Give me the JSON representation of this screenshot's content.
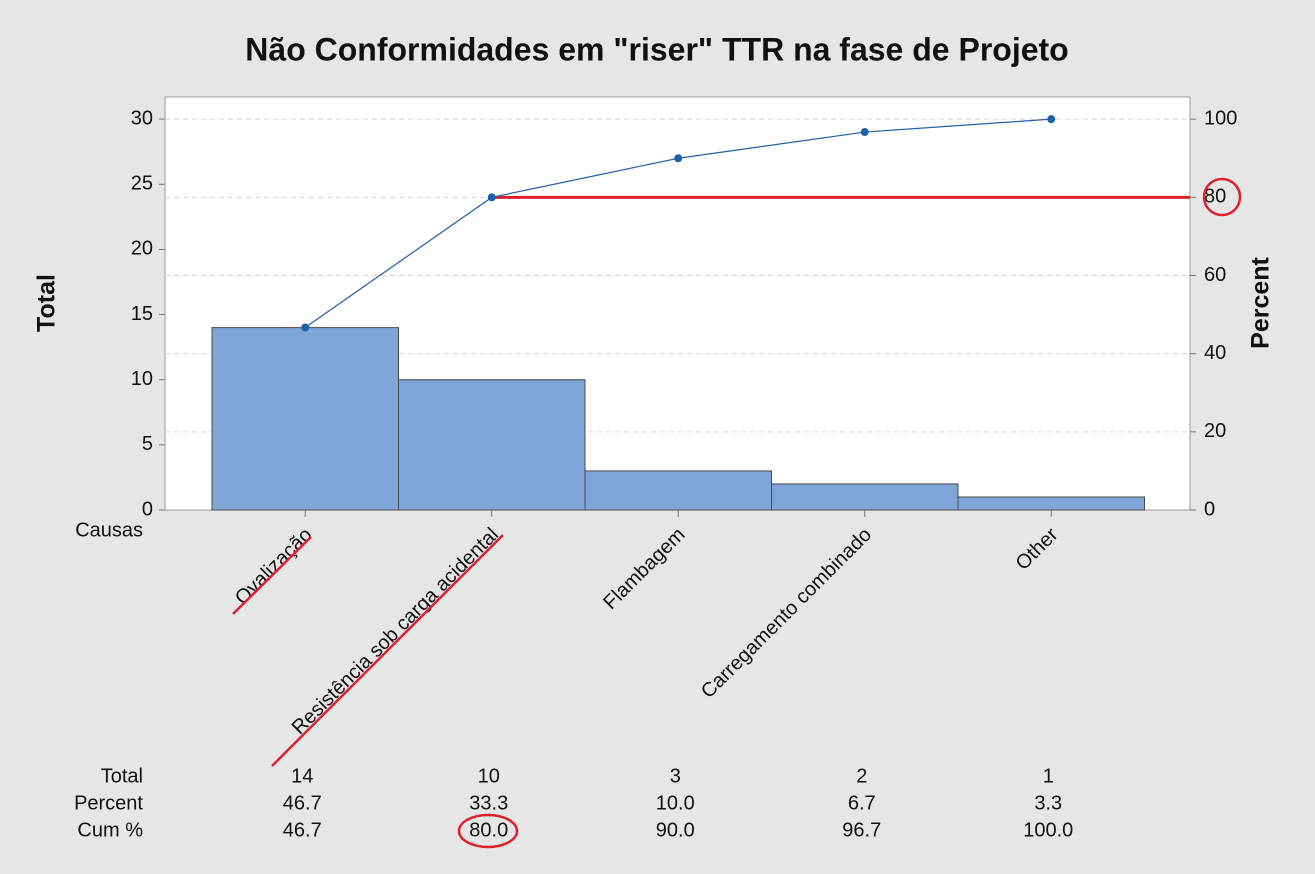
{
  "chart_data": {
    "type": "pareto",
    "title": "Não Conformidades em \"riser\" TTR na fase de Projeto",
    "ylabel": "Total",
    "y2label": "Percent",
    "xlabel": "Causas",
    "categories": [
      "Ovalização",
      "Resistência sob carga acidental",
      "Flambagem",
      "Carregamento combinado",
      "Other"
    ],
    "series": [
      {
        "name": "Total",
        "color": "#7ea6d8",
        "values": [
          14,
          10,
          3,
          2,
          1
        ]
      },
      {
        "name": "Cum %",
        "color": "#1f5fa8",
        "axis": "y2",
        "values": [
          46.7,
          80,
          90,
          96.7,
          100
        ],
        "value_labels": [
          "46.7",
          "80.0",
          "90.0",
          "96.7",
          "100.0"
        ]
      }
    ],
    "table": {
      "percent_label": "Percent",
      "percent": [
        "46.7",
        "33.3",
        "10.0",
        "6.7",
        "3.3"
      ]
    },
    "reference_line": {
      "value": 80,
      "color": "#e0202a"
    },
    "ylim": [
      0,
      31.7
    ],
    "yticks": [
      0,
      5,
      10,
      15,
      20,
      25,
      30
    ],
    "y2lim": [
      0,
      105.67
    ],
    "y2ticks": [
      0,
      20,
      40,
      60,
      80,
      100
    ],
    "grid": true
  }
}
